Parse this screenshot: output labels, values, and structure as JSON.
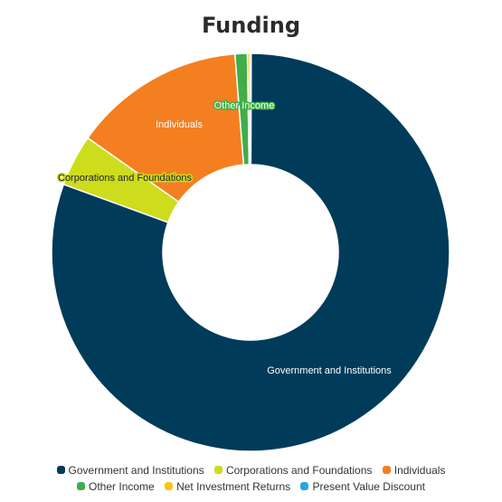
{
  "chart_data": {
    "type": "pie",
    "title": "Funding",
    "categories": [
      "Government and Institutions",
      "Corporations and Foundations",
      "Individuals",
      "Other Income",
      "Net Investment Returns",
      "Present Value Discount"
    ],
    "values": [
      80.5,
      4.2,
      14.0,
      1.0,
      0.2,
      0.1
    ],
    "colors": [
      "#003b5a",
      "#cddc1c",
      "#f47f20",
      "#3fae49",
      "#f4c81a",
      "#29a7df"
    ],
    "data_labels": [
      "Government and Institutions",
      "Corporations and Foundations",
      "Individuals",
      "Other Income",
      "",
      ""
    ],
    "legend_position": "bottom"
  },
  "legend": {
    "row1": [
      "Government and Institutions",
      "Corporations and Foundations",
      "Individuals"
    ],
    "row2": [
      "Other Income",
      "Net Investment Returns",
      "Present Value Discount"
    ]
  }
}
